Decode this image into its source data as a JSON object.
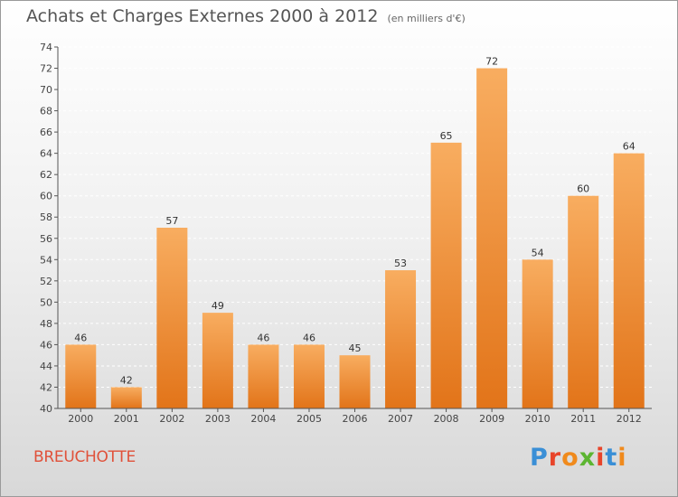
{
  "header": {
    "title": "Achats et Charges Externes 2000 à 2012",
    "unit": "(en milliers d'€)"
  },
  "place": "BREUCHOTTE",
  "logo": {
    "text": "Proxiti",
    "colors": [
      "#3a8fd6",
      "#e8442a",
      "#f08a1c",
      "#5cb531",
      "#e8442a",
      "#3a8fd6",
      "#f08a1c"
    ]
  },
  "colors": {
    "bar_light": "#f8ad60",
    "bar_dark": "#e27419",
    "grid": "#ffffff",
    "axis": "#555555"
  },
  "chart_data": {
    "type": "bar",
    "title": "Achats et Charges Externes 2000 à 2012",
    "xlabel": "",
    "ylabel": "",
    "categories": [
      "2000",
      "2001",
      "2002",
      "2003",
      "2004",
      "2005",
      "2006",
      "2007",
      "2008",
      "2009",
      "2010",
      "2011",
      "2012"
    ],
    "values": [
      46,
      42,
      57,
      49,
      46,
      46,
      45,
      53,
      65,
      72,
      54,
      60,
      64
    ],
    "ylim": [
      40,
      74
    ],
    "yticks": [
      40,
      42,
      44,
      46,
      48,
      50,
      52,
      54,
      56,
      58,
      60,
      62,
      64,
      66,
      68,
      70,
      72,
      74
    ],
    "grid": "horizontal dashed",
    "legend": "none"
  }
}
